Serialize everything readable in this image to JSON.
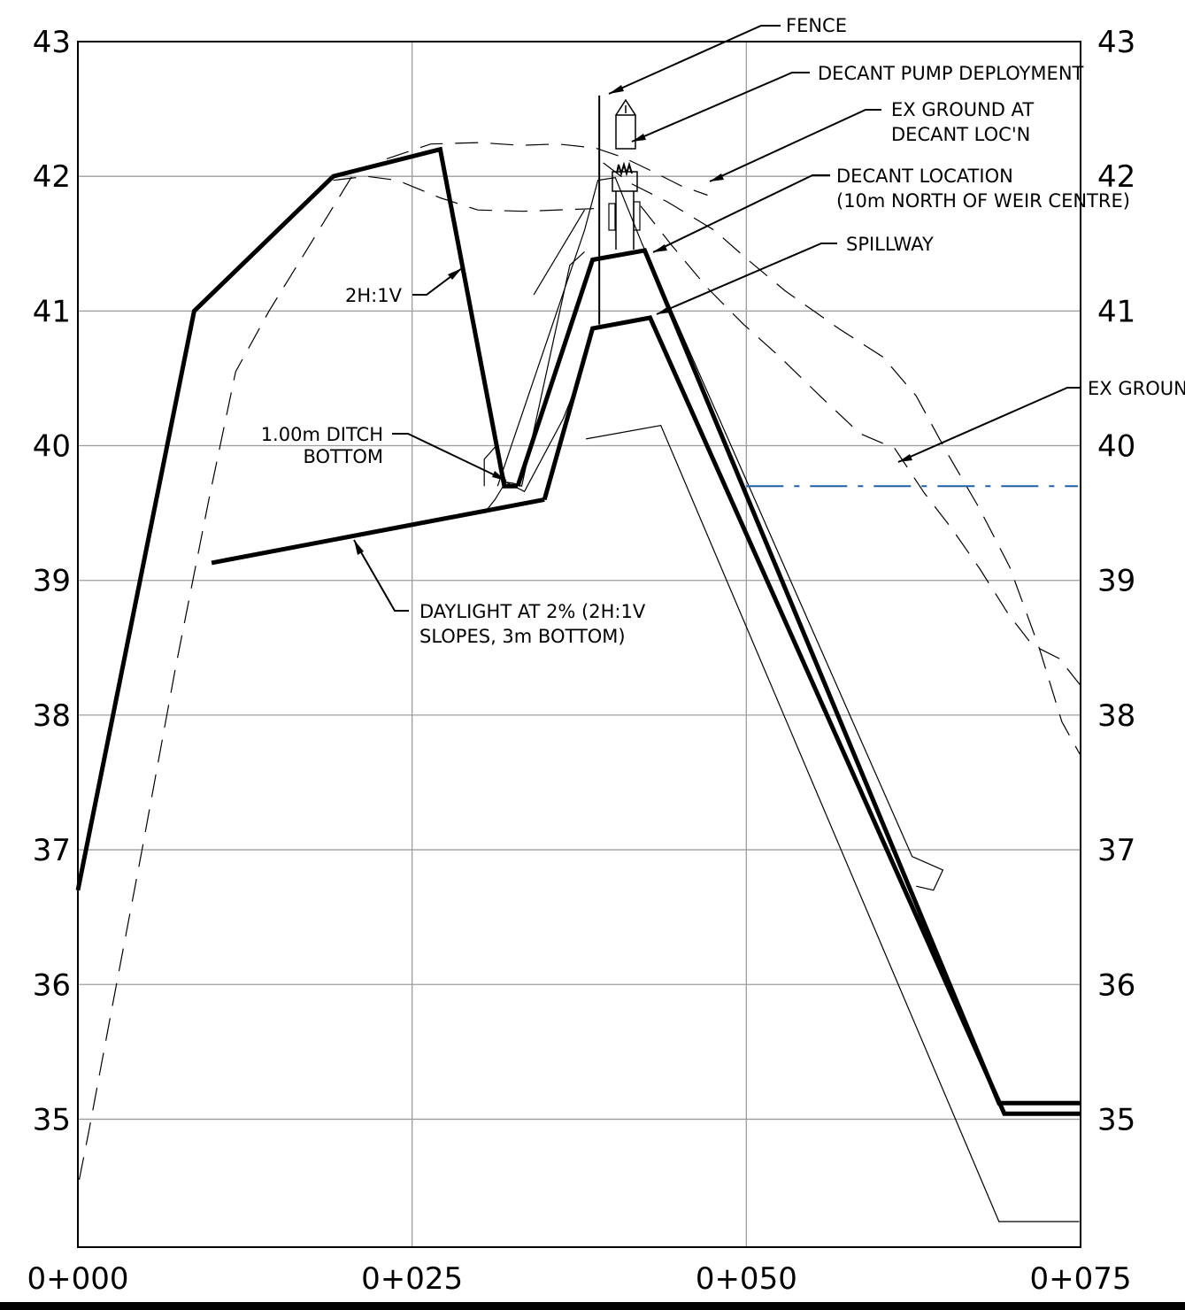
{
  "chart_data": {
    "type": "line",
    "x_label_text": [
      "0+000",
      "0+025",
      "0+050",
      "0+075"
    ],
    "x_ticks": [
      0,
      25,
      50,
      75
    ],
    "y_ticks": [
      35,
      36,
      37,
      38,
      39,
      40,
      41,
      42,
      43
    ],
    "y_label_text": [
      "35",
      "36",
      "37",
      "38",
      "39",
      "40",
      "41",
      "42",
      "43"
    ],
    "xlim": [
      0,
      75
    ],
    "ylim": [
      34.05,
      43
    ],
    "grid": true,
    "series": [
      {
        "name": "DAYLIGHT AT 2% (2H:1V SLOPES, 3m BOTTOM)",
        "style": "heavy",
        "x": [
          10.0,
          34.9
        ],
        "y": [
          39.13,
          39.6
        ]
      },
      {
        "style": "heavy",
        "x": [
          0,
          8.7,
          19.1,
          27.1,
          31.9,
          32.9
        ],
        "y": [
          36.7,
          41.0,
          42.0,
          42.2,
          39.7,
          39.7
        ]
      },
      {
        "name": "DECANT LOCATION (10m NORTH OF WEIR CENTRE)",
        "style": "heavy",
        "x": [
          32.9,
          38.5,
          42.4,
          68.9,
          75
        ],
        "y": [
          39.7,
          41.38,
          41.45,
          35.12,
          35.12
        ]
      },
      {
        "name": "SPILLWAY",
        "style": "heavy",
        "x": [
          34.9,
          38.5,
          42.8,
          69.3,
          75
        ],
        "y": [
          39.6,
          40.87,
          40.95,
          35.04,
          35.04
        ]
      },
      {
        "style": "thin",
        "x": [
          38.0,
          43.6,
          68.9,
          74.9
        ],
        "y": [
          40.05,
          40.15,
          34.24,
          34.24
        ]
      },
      {
        "style": "thin",
        "x": [
          31.4,
          37.9,
          38.9,
          40.2,
          42.2,
          62.4,
          64.7,
          64.0,
          62.7
        ],
        "y": [
          39.7,
          41.6,
          41.97,
          41.99,
          41.5,
          36.95,
          36.85,
          36.7,
          36.73
        ]
      },
      {
        "style": "thin",
        "x": [
          30.4,
          31.2,
          32.0,
          32.6,
          33.2,
          36.8,
          37.9
        ],
        "y": [
          39.5,
          39.6,
          39.73,
          39.72,
          39.7,
          41.34,
          41.44
        ]
      },
      {
        "style": "thin",
        "x": [
          30.4,
          30.4,
          31.3,
          32.0,
          33.4,
          36.3,
          37.3
        ],
        "y": [
          39.7,
          39.9,
          40.0,
          39.73,
          39.66,
          40.2,
          40.45
        ]
      },
      {
        "style": "thin",
        "x": [
          34.1,
          37.9
        ],
        "y": [
          41.12,
          41.75
        ]
      },
      {
        "name": "EX GROUND AT DECANT LOC'N",
        "style": "dash",
        "x": [
          19.1,
          21.6,
          23.9,
          27.1,
          29.9,
          33.3,
          38.6
        ],
        "y": [
          41.97,
          42.0,
          41.97,
          41.84,
          41.75,
          41.74,
          41.76
        ]
      },
      {
        "style": "dash",
        "x": [
          23.1,
          26.4,
          30.0,
          33.1,
          35.9,
          38.7,
          40.8,
          42.9,
          45.1,
          47.1
        ],
        "y": [
          42.13,
          42.24,
          42.25,
          42.23,
          42.24,
          42.21,
          42.14,
          42.04,
          41.93,
          41.86
        ]
      },
      {
        "style": "dash",
        "x": [
          39.3,
          41.3,
          44.1,
          47.6,
          50.0,
          52.9,
          56.9,
          60.2,
          62.7,
          65.0,
          67.4,
          69.7,
          71.9,
          73.6,
          75
        ],
        "y": [
          42.1,
          41.95,
          41.81,
          41.6,
          41.39,
          41.15,
          40.87,
          40.66,
          40.37,
          39.95,
          39.54,
          39.1,
          38.5,
          37.95,
          37.7
        ]
      },
      {
        "name": "EX GROUND",
        "style": "dash",
        "x": [
          0.1,
          0.8,
          2.5,
          4.8,
          7.3,
          9.8,
          11.8,
          14.3,
          17.4,
          20.5
        ],
        "y": [
          34.55,
          34.9,
          35.8,
          37.0,
          38.35,
          39.6,
          40.55,
          41.0,
          41.5,
          42.0
        ]
      },
      {
        "style": "dash",
        "x": [
          42.1,
          44.4,
          47.1,
          49.8,
          52.5,
          55.5,
          58.5,
          61.1,
          63.3,
          65.4,
          67.5,
          69.6,
          71.4,
          73.4,
          75
        ],
        "y": [
          41.78,
          41.49,
          41.17,
          40.9,
          40.66,
          40.37,
          40.09,
          39.98,
          39.65,
          39.38,
          39.08,
          38.75,
          38.52,
          38.42,
          38.22
        ]
      }
    ],
    "annotations": {
      "fence": "FENCE",
      "pump": "DECANT PUMP DEPLOYMENT",
      "exground_decant_line1": "EX GROUND AT",
      "exground_decant_line2": "DECANT LOC'N",
      "decant_line1": "DECANT LOCATION",
      "decant_line2": "(10m NORTH OF WEIR CENTRE)",
      "spillway": "SPILLWAY",
      "slope": "2H:1V",
      "exground": "EX GROUND",
      "ditch_line1": "1.00m DITCH",
      "ditch_line2": "BOTTOM",
      "daylight_line1": "DAYLIGHT AT 2% (2H:1V",
      "daylight_line2": "SLOPES, 3m BOTTOM)"
    },
    "water_level": 39.7,
    "fence_x": 39.0,
    "fence_y": [
      40.9,
      42.6
    ]
  }
}
